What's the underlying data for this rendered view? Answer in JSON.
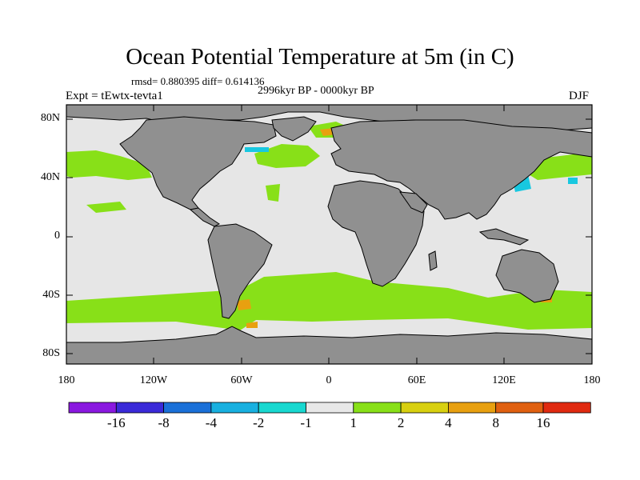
{
  "title": "Ocean Potential Temperature at 5m (in C)",
  "stats": "rmsd= 0.880395 diff= 0.614136",
  "period": "2996kyr BP - 0000kyr BP",
  "experiment": "Expt = tEwtx-tevta1",
  "season": "DJF",
  "lat_ticks": [
    "80N",
    "40N",
    "0",
    "40S",
    "80S"
  ],
  "lon_ticks": [
    "180",
    "120W",
    "60W",
    "0",
    "60E",
    "120E",
    "180"
  ],
  "colorbar": {
    "labels": [
      "-16",
      "-8",
      "-4",
      "-2",
      "-1",
      "1",
      "2",
      "4",
      "8",
      "16"
    ],
    "colors": [
      "#8a18e0",
      "#3a2ad8",
      "#1a70d8",
      "#18b0e0",
      "#18d8d0",
      "#e8e8e8",
      "#88e018",
      "#d8d010",
      "#e8a010",
      "#e06010",
      "#e02a10"
    ]
  },
  "colors": {
    "land": "#909090",
    "ocean_neutral": "#e6e6e6",
    "warm": "#88e018",
    "warm_strong": "#e8a010",
    "cool": "#18c8e0"
  }
}
